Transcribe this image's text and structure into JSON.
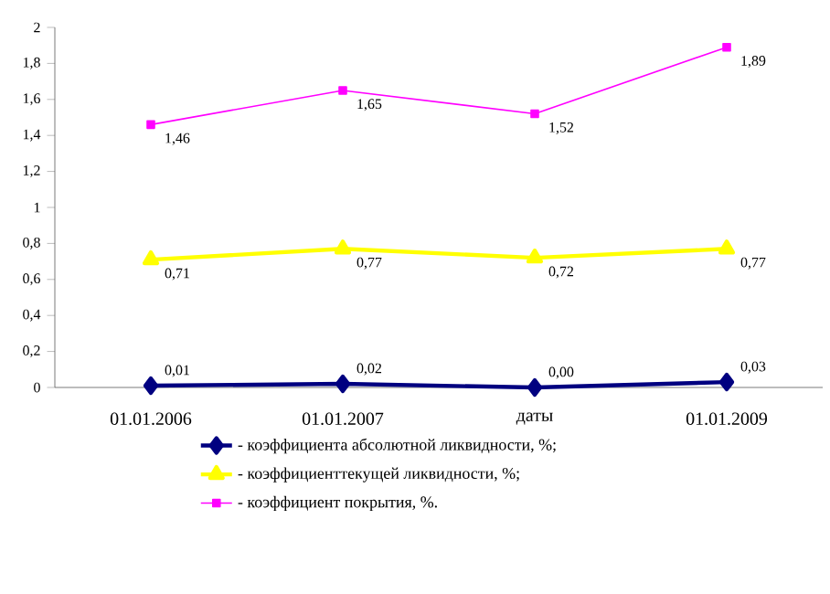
{
  "chart_data": {
    "type": "line",
    "categories": [
      "01.01.2006",
      "01.01.2007",
      "даты",
      "01.01.2009"
    ],
    "series": [
      {
        "name": "- коэффициента абсолютной ликвидности, %;",
        "color": "#000080",
        "marker": "diamond",
        "values": [
          0.01,
          0.02,
          0.0,
          0.03
        ],
        "value_labels": [
          "0,01",
          "0,02",
          "0,00",
          "0,03"
        ]
      },
      {
        "name": "- коэффициенттекущей ликвидности, %;",
        "color": "#ffff00",
        "marker": "triangle",
        "values": [
          0.71,
          0.77,
          0.72,
          0.77
        ],
        "value_labels": [
          "0,71",
          "0,77",
          "0,72",
          "0,77"
        ]
      },
      {
        "name": "- коэффициент покрытия, %.",
        "color": "#ff00ff",
        "marker": "square",
        "values": [
          1.46,
          1.65,
          1.52,
          1.89
        ],
        "value_labels": [
          "1,46",
          "1,65",
          "1,52",
          "1,89"
        ]
      }
    ],
    "ylim": [
      0,
      2
    ],
    "yticks": [
      0,
      {
        "value": 0.2,
        "label": "0,2"
      },
      {
        "value": 0.4,
        "label": "0,4"
      },
      {
        "value": 0.6,
        "label": "0,6"
      },
      {
        "value": 0.8,
        "label": "0,8"
      },
      1,
      {
        "value": 1.2,
        "label": "1,2"
      },
      {
        "value": 1.4,
        "label": "1,4"
      },
      {
        "value": 1.6,
        "label": "1,6"
      },
      {
        "value": 1.8,
        "label": "1,8"
      },
      2
    ],
    "grid": false,
    "legend": "bottom"
  }
}
